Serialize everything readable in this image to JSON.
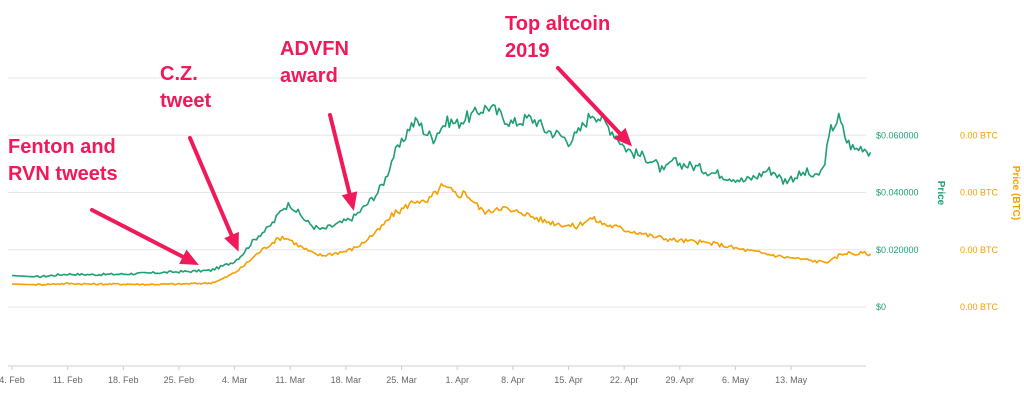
{
  "chart_data": {
    "type": "line",
    "x_ticks": [
      "4. Feb",
      "11. Feb",
      "18. Feb",
      "25. Feb",
      "4. Mar",
      "11. Mar",
      "18. Mar",
      "25. Mar",
      "1. Apr",
      "8. Apr",
      "15. Apr",
      "22. Apr",
      "29. Apr",
      "6. May",
      "13. May"
    ],
    "x_range_days": [
      0,
      108
    ],
    "y_left": {
      "label": "Price",
      "ticks": [
        "$0",
        "$0.020000",
        "$0.040000",
        "$0.060000"
      ],
      "range": [
        0,
        0.08
      ],
      "color": "#1e9e74"
    },
    "y_right": {
      "label": "Price (BTC)",
      "ticks": [
        "0.00 BTC",
        "0.00 BTC",
        "0.00 BTC",
        "0.00 BTC"
      ],
      "color": "#f5a000"
    },
    "grid": true,
    "series": [
      {
        "name": "Price",
        "axis": "left",
        "color": "#1e9e74",
        "x": [
          0,
          3,
          7,
          10,
          14,
          17,
          21,
          23,
          25,
          26,
          27,
          28,
          29,
          30,
          31,
          32,
          33,
          34,
          35,
          36,
          37,
          38,
          39,
          40,
          41,
          42,
          43,
          44,
          45,
          46,
          47,
          48,
          49,
          50,
          51,
          52,
          53,
          54,
          55,
          56,
          57,
          58,
          59,
          60,
          61,
          62,
          63,
          64,
          65,
          66,
          67,
          68,
          69,
          70,
          71,
          72,
          73,
          74,
          75,
          76,
          77,
          78,
          79,
          80,
          81,
          82,
          83,
          84,
          85,
          86,
          87,
          88,
          89,
          90,
          91,
          92,
          93,
          94,
          95,
          96,
          97,
          98,
          99,
          100,
          101,
          102,
          103,
          104,
          105,
          106,
          107,
          108
        ],
        "values": [
          0.011,
          0.0105,
          0.0115,
          0.0113,
          0.0115,
          0.0118,
          0.0123,
          0.0125,
          0.0128,
          0.0138,
          0.0148,
          0.016,
          0.0185,
          0.022,
          0.025,
          0.027,
          0.03,
          0.0345,
          0.036,
          0.033,
          0.03,
          0.028,
          0.027,
          0.028,
          0.029,
          0.03,
          0.0315,
          0.034,
          0.037,
          0.04,
          0.045,
          0.053,
          0.057,
          0.063,
          0.065,
          0.061,
          0.059,
          0.063,
          0.065,
          0.064,
          0.066,
          0.067,
          0.069,
          0.07,
          0.068,
          0.066,
          0.064,
          0.065,
          0.066,
          0.065,
          0.062,
          0.061,
          0.06,
          0.058,
          0.06,
          0.064,
          0.068,
          0.066,
          0.063,
          0.06,
          0.056,
          0.054,
          0.053,
          0.052,
          0.05,
          0.047,
          0.051,
          0.05,
          0.0495,
          0.049,
          0.048,
          0.047,
          0.0465,
          0.0455,
          0.045,
          0.044,
          0.045,
          0.046,
          0.048,
          0.047,
          0.044,
          0.045,
          0.046,
          0.047,
          0.045,
          0.048,
          0.062,
          0.066,
          0.058,
          0.055,
          0.056,
          0.054
        ]
      },
      {
        "name": "Price (BTC)",
        "axis": "right",
        "color": "#f5a000",
        "x": [
          0,
          3,
          7,
          10,
          14,
          17,
          21,
          23,
          25,
          26,
          27,
          28,
          29,
          30,
          31,
          32,
          33,
          34,
          35,
          36,
          37,
          38,
          39,
          40,
          41,
          42,
          43,
          44,
          45,
          46,
          47,
          48,
          49,
          50,
          51,
          52,
          53,
          54,
          55,
          56,
          57,
          58,
          59,
          60,
          61,
          62,
          63,
          64,
          65,
          66,
          67,
          68,
          69,
          70,
          71,
          72,
          73,
          74,
          75,
          76,
          77,
          78,
          79,
          80,
          81,
          82,
          83,
          84,
          85,
          86,
          87,
          88,
          89,
          90,
          91,
          92,
          93,
          94,
          95,
          96,
          97,
          98,
          99,
          100,
          101,
          102,
          103,
          104,
          105,
          106,
          107,
          108
        ],
        "values": [
          0.008,
          0.0078,
          0.0082,
          0.008,
          0.008,
          0.0079,
          0.008,
          0.0082,
          0.0084,
          0.0092,
          0.0105,
          0.012,
          0.014,
          0.0165,
          0.019,
          0.021,
          0.023,
          0.0245,
          0.0235,
          0.0215,
          0.02,
          0.0185,
          0.018,
          0.0185,
          0.019,
          0.0195,
          0.0205,
          0.022,
          0.0245,
          0.0265,
          0.0295,
          0.0325,
          0.034,
          0.036,
          0.0375,
          0.036,
          0.039,
          0.042,
          0.041,
          0.039,
          0.04,
          0.037,
          0.034,
          0.033,
          0.035,
          0.0345,
          0.033,
          0.0335,
          0.032,
          0.031,
          0.03,
          0.0295,
          0.029,
          0.0285,
          0.028,
          0.03,
          0.031,
          0.0295,
          0.0285,
          0.028,
          0.027,
          0.0265,
          0.026,
          0.025,
          0.0245,
          0.024,
          0.0235,
          0.0232,
          0.023,
          0.0228,
          0.0225,
          0.0222,
          0.0218,
          0.0212,
          0.0205,
          0.02,
          0.0195,
          0.019,
          0.0185,
          0.018,
          0.0175,
          0.0172,
          0.0168,
          0.0165,
          0.016,
          0.0158,
          0.016,
          0.018,
          0.019,
          0.0185,
          0.0188,
          0.0185
        ]
      }
    ],
    "annotations": [
      {
        "name": "fenton",
        "lines": [
          "Fenton and",
          "RVN tweets"
        ],
        "target_day": 23.5,
        "target_series": 0
      },
      {
        "name": "cz",
        "lines": [
          "C.Z.",
          "tweet"
        ],
        "target_day": 28.5,
        "target_series": 0
      },
      {
        "name": "advfn",
        "lines": [
          "ADVFN",
          "award"
        ],
        "target_day": 43,
        "target_series": 0
      },
      {
        "name": "top-altcoin",
        "lines": [
          "Top altcoin",
          "2019"
        ],
        "target_day": 78,
        "target_series": 0
      }
    ],
    "annotation_color": "#f0195a"
  }
}
